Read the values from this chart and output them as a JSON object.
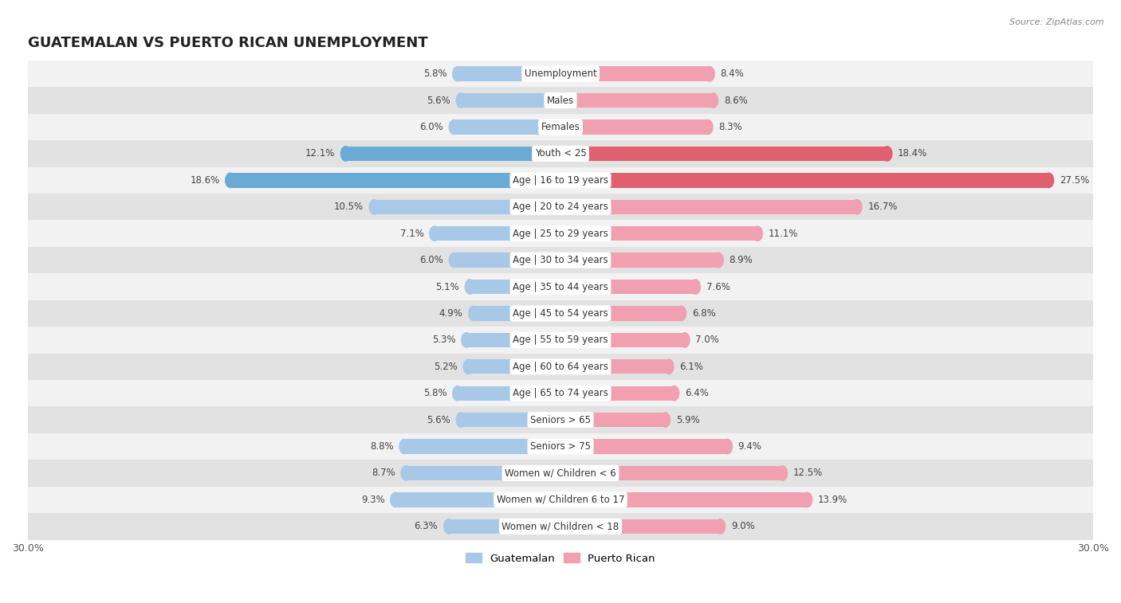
{
  "title": "GUATEMALAN VS PUERTO RICAN UNEMPLOYMENT",
  "source": "Source: ZipAtlas.com",
  "categories": [
    "Unemployment",
    "Males",
    "Females",
    "Youth < 25",
    "Age | 16 to 19 years",
    "Age | 20 to 24 years",
    "Age | 25 to 29 years",
    "Age | 30 to 34 years",
    "Age | 35 to 44 years",
    "Age | 45 to 54 years",
    "Age | 55 to 59 years",
    "Age | 60 to 64 years",
    "Age | 65 to 74 years",
    "Seniors > 65",
    "Seniors > 75",
    "Women w/ Children < 6",
    "Women w/ Children 6 to 17",
    "Women w/ Children < 18"
  ],
  "guatemalan": [
    5.8,
    5.6,
    6.0,
    12.1,
    18.6,
    10.5,
    7.1,
    6.0,
    5.1,
    4.9,
    5.3,
    5.2,
    5.8,
    5.6,
    8.8,
    8.7,
    9.3,
    6.3
  ],
  "puerto_rican": [
    8.4,
    8.6,
    8.3,
    18.4,
    27.5,
    16.7,
    11.1,
    8.9,
    7.6,
    6.8,
    7.0,
    6.1,
    6.4,
    5.9,
    9.4,
    12.5,
    13.9,
    9.0
  ],
  "guatemalan_color": "#a8c8e8",
  "puerto_rican_color": "#f0a0b0",
  "highlight_guatemalan_color": "#6aaad4",
  "highlight_puerto_rican_color": "#e06070",
  "row_bg_light": "#f2f2f2",
  "row_bg_dark": "#e2e2e2",
  "axis_limit": 30.0,
  "bar_height": 0.55,
  "label_fontsize": 8.5,
  "value_fontsize": 8.5,
  "title_fontsize": 13
}
